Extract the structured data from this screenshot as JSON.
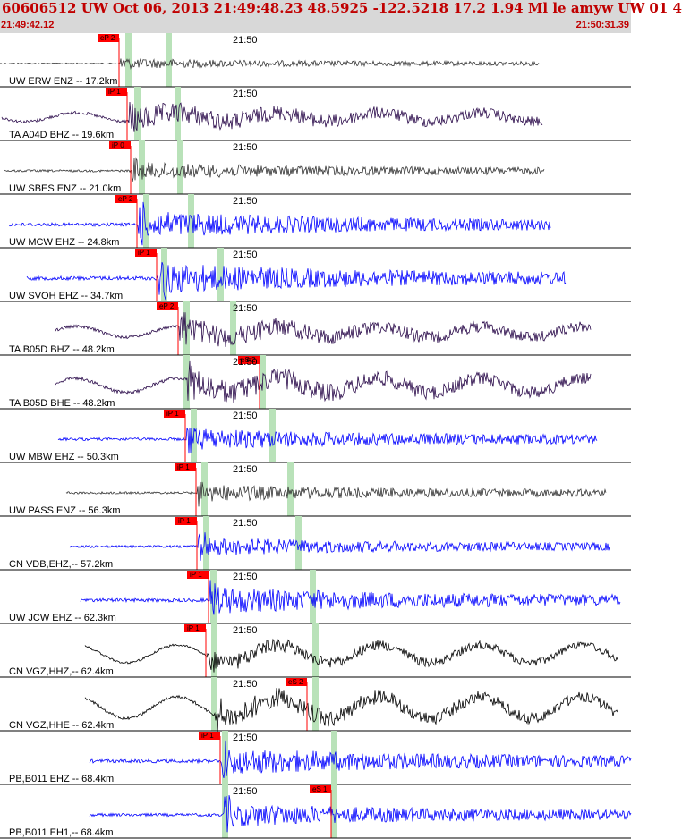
{
  "header": {
    "title": "60606512 UW Oct 06, 2013 21:49:48.23   48.5925 -122.5218 17.2 1.94 Ml le amyw UW 01   4",
    "start_time": "21:49:42.12",
    "end_time": "21:50:31.39"
  },
  "colors": {
    "header_bg": "#d8d8d8",
    "header_text": "#c00000",
    "pick_flag": "#ff0000",
    "window_band": "#b9e2b9",
    "trace_blue": "#0000ff",
    "trace_purple": "#2a0a4a",
    "trace_gray": "#333333",
    "trace_black": "#000000",
    "divider": "#000000"
  },
  "traces": [
    {
      "label": "UW ERW ENZ -- 17.2km",
      "tick": "21:50",
      "pick": "eP 2",
      "color": "gray"
    },
    {
      "label": "TA A04D BHZ -- 19.6km",
      "tick": "21:50",
      "pick": "iP 1",
      "color": "purple"
    },
    {
      "label": "UW SBES ENZ -- 21.0km",
      "tick": "21:50",
      "pick": "iP 0",
      "color": "gray"
    },
    {
      "label": "UW MCW EHZ -- 24.8km",
      "tick": "21:50",
      "pick": "eP 2",
      "color": "blue"
    },
    {
      "label": "UW SVOH EHZ -- 34.7km",
      "tick": "21:50",
      "pick": "iP 1",
      "color": "blue"
    },
    {
      "label": "TA B05D BHZ -- 48.2km",
      "tick": "21:50",
      "pick": "eP 2",
      "color": "purple"
    },
    {
      "label": "TA B05D BHE -- 48.2km",
      "tick": "21:50",
      "pick": "eS 2",
      "color": "purple"
    },
    {
      "label": "UW MBW EHZ -- 50.3km",
      "tick": "21:50",
      "pick": "iP 1",
      "color": "blue"
    },
    {
      "label": "UW PASS ENZ -- 56.3km",
      "tick": "21:50",
      "pick": "iP 1",
      "color": "gray"
    },
    {
      "label": "CN VDB,EHZ,-- 57.2km",
      "tick": "21:50",
      "pick": "iP 1",
      "color": "blue"
    },
    {
      "label": "UW JCW EHZ -- 62.3km",
      "tick": "21:50",
      "pick": "iP 1",
      "color": "blue"
    },
    {
      "label": "CN VGZ,HHZ,-- 62.4km",
      "tick": "21:50",
      "pick": "iP 1",
      "color": "black"
    },
    {
      "label": "CN VGZ,HHE -- 62.4km",
      "tick": "21:50",
      "pick": "eS 2",
      "color": "black"
    },
    {
      "label": "PB,B011 EHZ -- 68.4km",
      "tick": "21:50",
      "pick": "iP 1",
      "color": "blue"
    },
    {
      "label": "PB,B011 EH1,-- 68.4km",
      "tick": "21:50",
      "pick": "eS 1",
      "color": "blue"
    }
  ]
}
